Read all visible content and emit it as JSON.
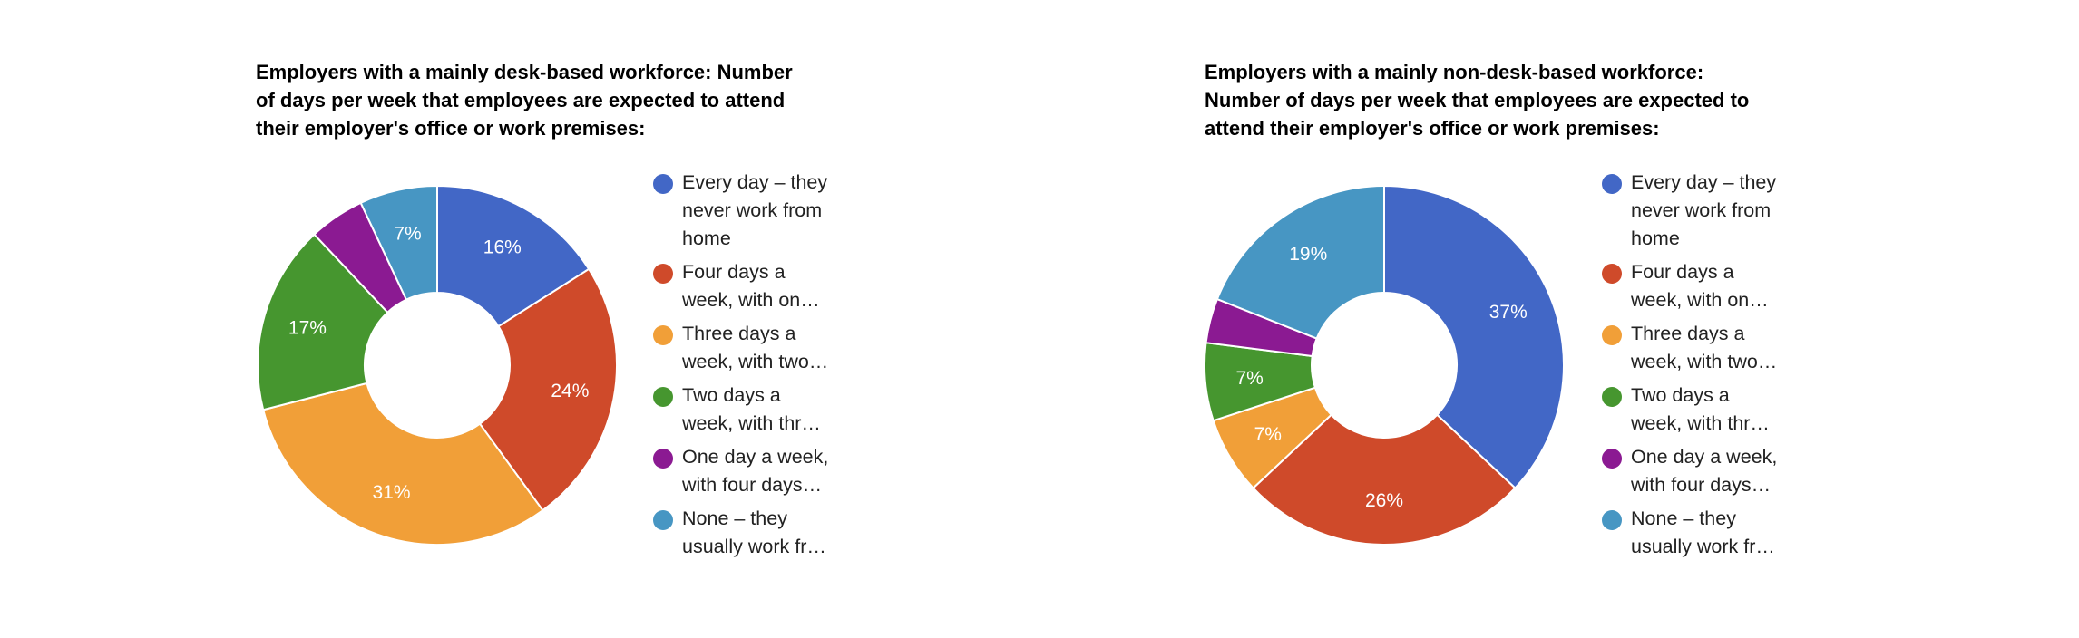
{
  "chart_data": [
    {
      "type": "pie",
      "variant": "donut",
      "title": "Employers with a mainly desk-based workforce: Number of days per week that employees are expected to attend their employer's office or work premises:",
      "title_lines": [
        "Employers with a mainly desk-based workforce: Number",
        "of days per week that employees are expected to attend",
        "their employer's office or work premises:"
      ],
      "categories": [
        "Every day – they never work from home",
        "Four days a week, with on…",
        "Three days a week, with two…",
        "Two days a week, with thr…",
        "One day a week, with four days…",
        "None – they usually work fr…"
      ],
      "values": [
        16,
        24,
        31,
        17,
        5,
        7
      ],
      "labels": [
        "16%",
        "24%",
        "31%",
        "17%",
        "",
        "7%"
      ],
      "colors": [
        "#4267c6",
        "#cf4a2a",
        "#f19f38",
        "#46962f",
        "#8b1a92",
        "#4796c3"
      ],
      "legend_position": "right",
      "start_angle_deg": 0,
      "direction": "clockwise",
      "note": "Purple slice is unlabelled; value estimated as remainder (~5%)"
    },
    {
      "type": "pie",
      "variant": "donut",
      "title": "Employers with a mainly non-desk-based workforce: Number of days per week that employees are expected to attend their employer's office or work premises:",
      "title_lines": [
        "Employers with a mainly non-desk-based workforce:",
        "Number of days per week that employees are expected to",
        "attend their employer's office or work premises:"
      ],
      "categories": [
        "Every day – they never work from home",
        "Four days a week, with on…",
        "Three days a week, with two…",
        "Two days a week, with thr…",
        "One day a week, with four days…",
        "None – they usually work fr…"
      ],
      "values": [
        37,
        26,
        7,
        7,
        4,
        19
      ],
      "labels": [
        "37%",
        "26%",
        "7%",
        "7%",
        "",
        "19%"
      ],
      "colors": [
        "#4267c6",
        "#cf4a2a",
        "#f19f38",
        "#46962f",
        "#8b1a92",
        "#4796c3"
      ],
      "legend_position": "right",
      "start_angle_deg": 0,
      "direction": "clockwise",
      "note": "Purple slice is unlabelled; value estimated as remainder (~4%)"
    }
  ],
  "charts": [
    {
      "title_lines": [
        "Employers with a mainly desk-based workforce: Number",
        "of days per week that employees are expected to attend",
        "their employer's office or work premises:"
      ],
      "legend": [
        {
          "text": "Every day – they\nnever work from\nhome",
          "color": "#4267c6"
        },
        {
          "text": "Four days a\nweek, with on…",
          "color": "#cf4a2a"
        },
        {
          "text": "Three days a\nweek, with two…",
          "color": "#f19f38"
        },
        {
          "text": "Two days a\nweek, with thr…",
          "color": "#46962f"
        },
        {
          "text": "One day a week,\nwith four days…",
          "color": "#8b1a92"
        },
        {
          "text": "None – they\nusually work fr…",
          "color": "#4796c3"
        }
      ]
    },
    {
      "title_lines": [
        "Employers with a mainly non-desk-based workforce:",
        "Number of days per week that employees are expected to",
        "attend their employer's office or work premises:"
      ],
      "legend": [
        {
          "text": "Every day – they\nnever work from\nhome",
          "color": "#4267c6"
        },
        {
          "text": "Four days a\nweek, with on…",
          "color": "#cf4a2a"
        },
        {
          "text": "Three days a\nweek, with two…",
          "color": "#f19f38"
        },
        {
          "text": "Two days a\nweek, with thr…",
          "color": "#46962f"
        },
        {
          "text": "One day a week,\nwith four days…",
          "color": "#8b1a92"
        },
        {
          "text": "None – they\nusually work fr…",
          "color": "#4796c3"
        }
      ]
    }
  ]
}
